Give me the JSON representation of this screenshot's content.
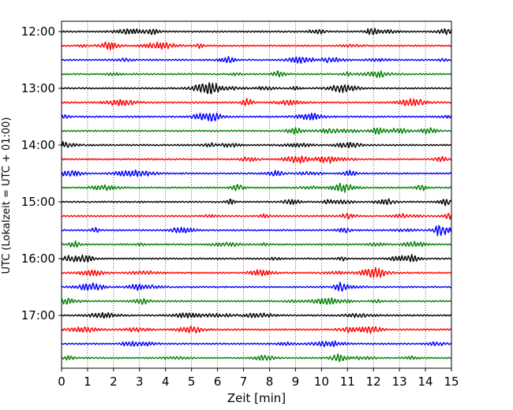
{
  "chart_data": {
    "type": "line",
    "title": "",
    "xlabel": "Zeit  [min]",
    "ylabel": "UTC (Lokalzeit = UTC + 01:00)",
    "xlim": [
      0,
      15
    ],
    "x_ticks": [
      "0",
      "1",
      "2",
      "3",
      "4",
      "5",
      "6",
      "7",
      "8",
      "9",
      "10",
      "11",
      "12",
      "13",
      "14",
      "15"
    ],
    "y_tick_labels": [
      "12:00",
      "13:00",
      "14:00",
      "15:00",
      "16:00",
      "17:00"
    ],
    "grid": "vertical dotted lines at each minute",
    "colors": [
      "#000000",
      "#ff0000",
      "#0000ff",
      "#008000"
    ],
    "series": [
      {
        "start": "12:00",
        "color": "#000000"
      },
      {
        "start": "12:15",
        "color": "#ff0000"
      },
      {
        "start": "12:30",
        "color": "#0000ff"
      },
      {
        "start": "12:45",
        "color": "#008000"
      },
      {
        "start": "13:00",
        "color": "#000000"
      },
      {
        "start": "13:15",
        "color": "#ff0000"
      },
      {
        "start": "13:30",
        "color": "#0000ff"
      },
      {
        "start": "13:45",
        "color": "#008000"
      },
      {
        "start": "14:00",
        "color": "#000000"
      },
      {
        "start": "14:15",
        "color": "#ff0000"
      },
      {
        "start": "14:30",
        "color": "#0000ff"
      },
      {
        "start": "14:45",
        "color": "#008000"
      },
      {
        "start": "15:00",
        "color": "#000000"
      },
      {
        "start": "15:15",
        "color": "#ff0000"
      },
      {
        "start": "15:30",
        "color": "#0000ff"
      },
      {
        "start": "15:45",
        "color": "#008000"
      },
      {
        "start": "16:00",
        "color": "#000000"
      },
      {
        "start": "16:15",
        "color": "#ff0000"
      },
      {
        "start": "16:30",
        "color": "#0000ff"
      },
      {
        "start": "16:45",
        "color": "#008000"
      },
      {
        "start": "17:00",
        "color": "#000000"
      },
      {
        "start": "17:15",
        "color": "#ff0000"
      },
      {
        "start": "17:30",
        "color": "#0000ff"
      },
      {
        "start": "17:45",
        "color": "#008000"
      }
    ]
  }
}
